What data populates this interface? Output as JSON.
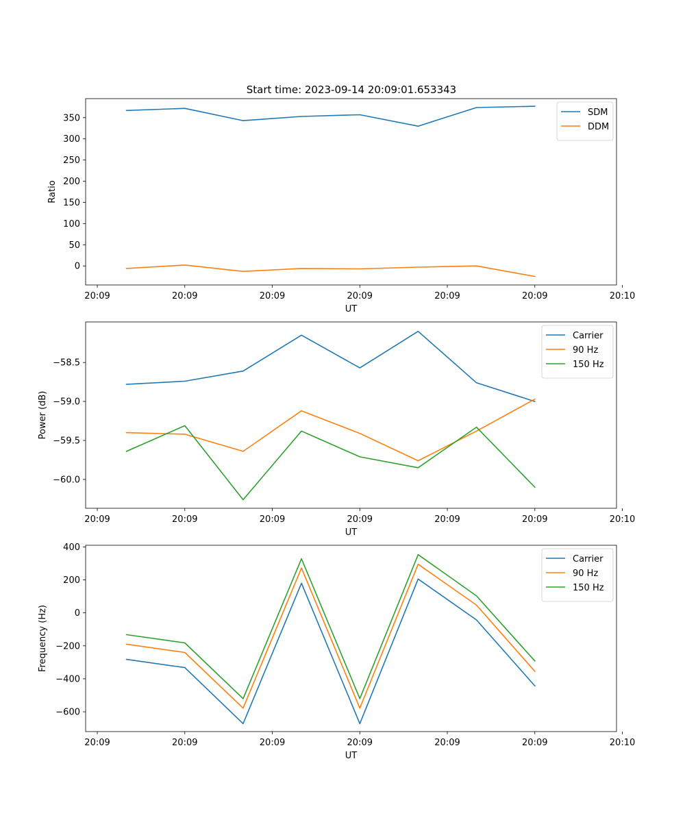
{
  "figure_title": "Start time: 2023-09-14 20:09:01.653343",
  "chart_data": [
    {
      "type": "line",
      "title": "Start time: 2023-09-14 20:09:01.653343",
      "xlabel": "UT",
      "ylabel": "Ratio",
      "x": [
        1,
        2,
        3,
        4,
        5,
        6,
        7,
        8
      ],
      "xlim": [
        0.3,
        9.4
      ],
      "x_ticks": [
        0.5,
        2,
        3.5,
        5,
        6.5,
        8,
        9.5
      ],
      "x_tick_labels": [
        "20:09",
        "20:09",
        "20:09",
        "20:09",
        "20:09",
        "20:09",
        "20:10"
      ],
      "ylim": [
        -45,
        395
      ],
      "y_ticks": [
        0,
        50,
        100,
        150,
        200,
        250,
        300,
        350
      ],
      "y_tick_labels": [
        "0",
        "50",
        "100",
        "150",
        "200",
        "250",
        "300",
        "350"
      ],
      "legend": "top-right",
      "series": [
        {
          "name": "SDM",
          "color": "#1f77b4",
          "values": [
            367,
            372,
            343,
            353,
            357,
            330,
            374,
            377
          ]
        },
        {
          "name": "DDM",
          "color": "#ff7f0e",
          "values": [
            -6,
            2,
            -13,
            -6,
            -7,
            -3,
            0,
            -25
          ]
        }
      ]
    },
    {
      "type": "line",
      "xlabel": "UT",
      "ylabel": "Power (dB)",
      "x": [
        1,
        2,
        3,
        4,
        5,
        6,
        7,
        8
      ],
      "xlim": [
        0.3,
        9.4
      ],
      "x_ticks": [
        0.5,
        2,
        3.5,
        5,
        6.5,
        8,
        9.5
      ],
      "x_tick_labels": [
        "20:09",
        "20:09",
        "20:09",
        "20:09",
        "20:09",
        "20:09",
        "20:10"
      ],
      "ylim": [
        -60.37,
        -57.98
      ],
      "y_ticks": [
        -60.0,
        -59.5,
        -59.0,
        -58.5
      ],
      "y_tick_labels": [
        "−60.0",
        "−59.5",
        "−59.0",
        "−58.5"
      ],
      "legend": "top-right",
      "series": [
        {
          "name": "Carrier",
          "color": "#1f77b4",
          "values": [
            -58.78,
            -58.74,
            -58.61,
            -58.15,
            -58.57,
            -58.1,
            -58.76,
            -59.0
          ]
        },
        {
          "name": "90 Hz",
          "color": "#ff7f0e",
          "values": [
            -59.4,
            -59.42,
            -59.64,
            -59.12,
            -59.41,
            -59.76,
            -59.38,
            -58.97
          ]
        },
        {
          "name": "150 Hz",
          "color": "#2ca02c",
          "values": [
            -59.64,
            -59.31,
            -60.26,
            -59.38,
            -59.71,
            -59.85,
            -59.33,
            -60.1
          ]
        }
      ]
    },
    {
      "type": "line",
      "xlabel": "UT",
      "ylabel": "Frequency (Hz)",
      "x": [
        1,
        2,
        3,
        4,
        5,
        6,
        7,
        8
      ],
      "xlim": [
        0.3,
        9.4
      ],
      "x_ticks": [
        0.5,
        2,
        3.5,
        5,
        6.5,
        8,
        9.5
      ],
      "x_tick_labels": [
        "20:09",
        "20:09",
        "20:09",
        "20:09",
        "20:09",
        "20:09",
        "20:10"
      ],
      "ylim": [
        -720,
        410
      ],
      "y_ticks": [
        -600,
        -400,
        -200,
        0,
        200,
        400
      ],
      "y_tick_labels": [
        "−600",
        "−400",
        "−200",
        "0",
        "200",
        "400"
      ],
      "legend": "top-right",
      "series": [
        {
          "name": "Carrier",
          "color": "#1f77b4",
          "values": [
            -282,
            -332,
            -672,
            180,
            -672,
            205,
            -43,
            -443
          ]
        },
        {
          "name": "90 Hz",
          "color": "#ff7f0e",
          "values": [
            -190,
            -240,
            -578,
            272,
            -578,
            295,
            47,
            -355
          ]
        },
        {
          "name": "150 Hz",
          "color": "#2ca02c",
          "values": [
            -132,
            -182,
            -520,
            328,
            -520,
            353,
            103,
            -292
          ]
        }
      ]
    }
  ]
}
